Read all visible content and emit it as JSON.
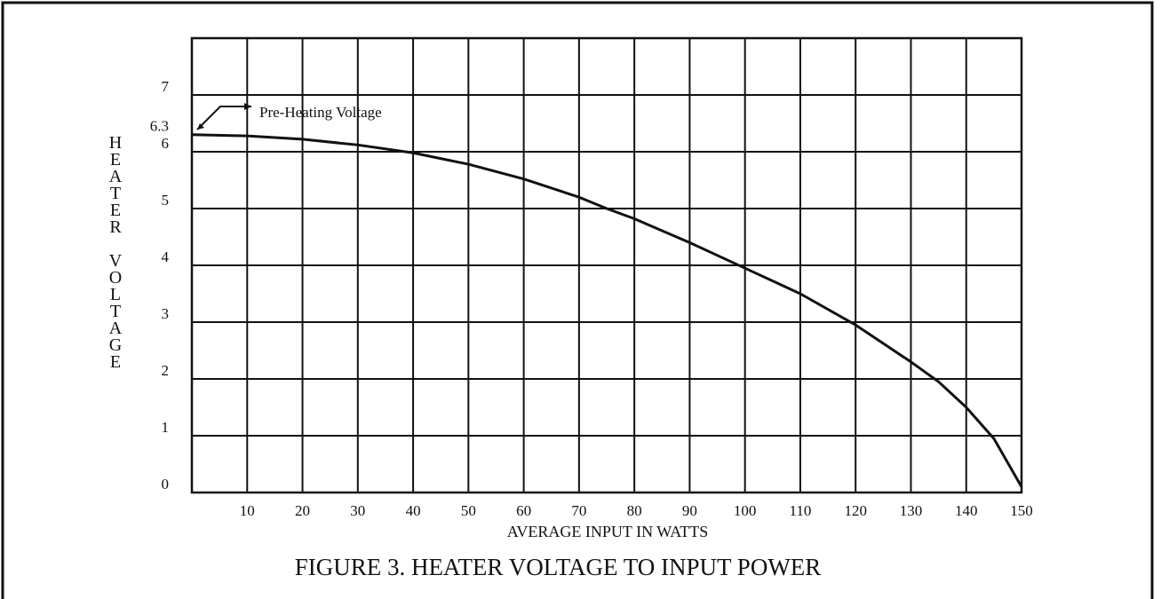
{
  "chart_data": {
    "type": "line",
    "title": "FIGURE 3. HEATER VOLTAGE TO INPUT POWER",
    "x_label": "AVERAGE INPUT IN WATTS",
    "y_label": "HEATER VOLTAGE",
    "annotation": "Pre-Heating Voltage",
    "x": [
      0,
      10,
      20,
      30,
      40,
      50,
      60,
      70,
      75,
      80,
      90,
      100,
      110,
      120,
      130,
      135,
      140,
      145,
      150
    ],
    "series": [
      {
        "color": "#111111",
        "values": [
          6.3,
          6.28,
          6.22,
          6.12,
          5.98,
          5.78,
          5.52,
          5.2,
          5.0,
          4.82,
          4.4,
          3.95,
          3.5,
          2.95,
          2.3,
          1.95,
          1.5,
          0.95,
          0.1
        ]
      }
    ],
    "xlim": [
      0,
      150
    ],
    "ylim": [
      0,
      8
    ],
    "xticks": [
      10,
      20,
      30,
      40,
      50,
      60,
      70,
      80,
      90,
      100,
      110,
      120,
      130,
      140,
      150
    ],
    "yticks": [
      0,
      1,
      2,
      3,
      4,
      5,
      6,
      6.3,
      7
    ],
    "ygrid": [
      1,
      2,
      3,
      4,
      5,
      6,
      7
    ],
    "grid": true
  }
}
